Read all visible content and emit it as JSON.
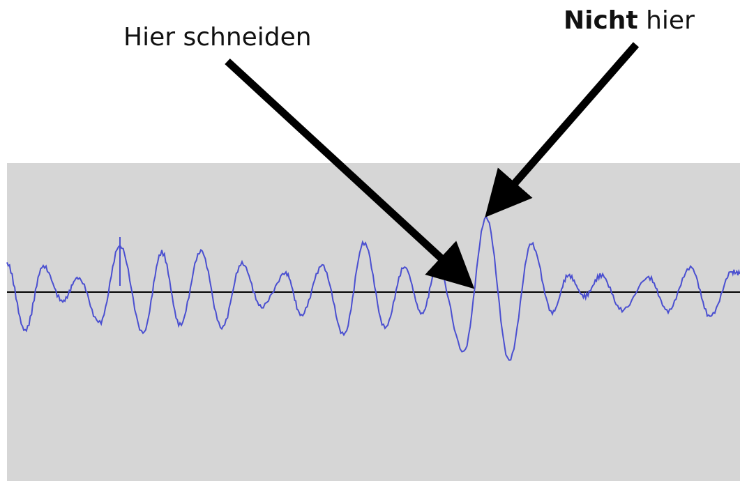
{
  "annotations": {
    "cut_here": "Hier schneiden",
    "not_here_bold": "Nicht",
    "not_here_rest": " hier"
  },
  "colors": {
    "panel_background": "#d6d6d6",
    "waveform": "#4a4fd0",
    "baseline": "#000000",
    "arrow": "#000000"
  }
}
